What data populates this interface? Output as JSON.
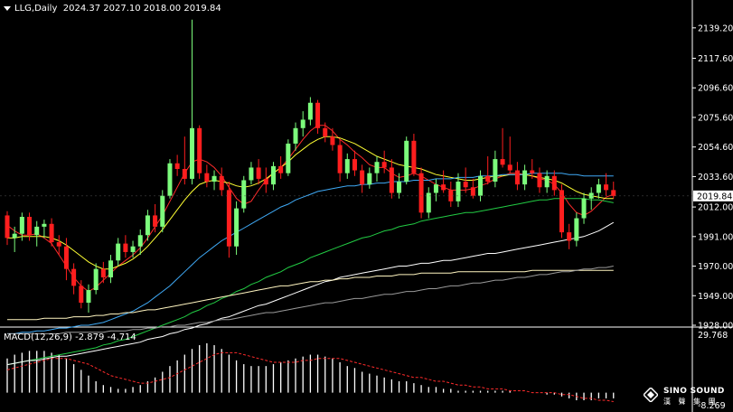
{
  "header": {
    "symbol": "LLG,Daily",
    "ohlc": "2024.37 2027.10 2018.00 2019.84"
  },
  "price_axis": {
    "ticks": [
      "2139.20",
      "2117.60",
      "2096.60",
      "2075.60",
      "2054.60",
      "2033.60",
      "2012.00",
      "1991.00",
      "1970.00",
      "1949.00",
      "1928.00"
    ],
    "current": "2019.84"
  },
  "macd": {
    "label": "MACD(12,26,9) -2.879 -4.714",
    "top": "29.768",
    "bottom": "-8.269"
  },
  "logo": {
    "brand": "SINO SOUND",
    "sub": "漢 聲 集 團"
  },
  "colors": {
    "background": "#000000",
    "bull": "#7CFC7C",
    "bear": "#FF1E1E",
    "ma_red": "#FF2B2B",
    "ma_yellow": "#FFFF33",
    "ma_blue": "#3FA9F5",
    "ma_green": "#22CC44",
    "ma_white": "#FFFFFF",
    "ma_cream": "#FFF5C0",
    "ma_gray": "#9A9A9A",
    "price_label_bg": "#FFFFFF"
  },
  "chart_data": {
    "type": "candlestick",
    "ylim": [
      1928,
      2150
    ],
    "candles": [
      [
        2006,
        2009,
        1985,
        1990
      ],
      [
        1990,
        1998,
        1980,
        1993
      ],
      [
        1993,
        2008,
        1988,
        2005
      ],
      [
        2005,
        2008,
        1988,
        1992
      ],
      [
        1992,
        2002,
        1984,
        1998
      ],
      [
        1998,
        2003,
        1990,
        2000
      ],
      [
        2000,
        2004,
        1984,
        1987
      ],
      [
        1987,
        1992,
        1978,
        1984
      ],
      [
        1984,
        1990,
        1960,
        1968
      ],
      [
        1968,
        1972,
        1950,
        1956
      ],
      [
        1956,
        1960,
        1940,
        1944
      ],
      [
        1944,
        1957,
        1937,
        1953
      ],
      [
        1953,
        1972,
        1950,
        1968
      ],
      [
        1968,
        1973,
        1958,
        1962
      ],
      [
        1962,
        1978,
        1958,
        1974
      ],
      [
        1974,
        1990,
        1970,
        1986
      ],
      [
        1986,
        1992,
        1976,
        1980
      ],
      [
        1980,
        1988,
        1976,
        1984
      ],
      [
        1984,
        1996,
        1978,
        1992
      ],
      [
        1992,
        2010,
        1988,
        2006
      ],
      [
        2006,
        2014,
        1994,
        1998
      ],
      [
        1998,
        2024,
        1994,
        2020
      ],
      [
        2020,
        2046,
        2018,
        2043
      ],
      [
        2043,
        2049,
        2034,
        2039
      ],
      [
        2039,
        2062,
        2028,
        2032
      ],
      [
        2032,
        2145,
        2028,
        2068
      ],
      [
        2068,
        2070,
        2032,
        2036
      ],
      [
        2036,
        2042,
        2026,
        2030
      ],
      [
        2030,
        2038,
        2024,
        2034
      ],
      [
        2034,
        2040,
        2020,
        2024
      ],
      [
        2024,
        2030,
        1976,
        1984
      ],
      [
        1984,
        2016,
        1978,
        2011
      ],
      [
        2011,
        2034,
        2008,
        2031
      ],
      [
        2031,
        2044,
        2028,
        2040
      ],
      [
        2040,
        2046,
        2028,
        2032
      ],
      [
        2032,
        2040,
        2022,
        2028
      ],
      [
        2028,
        2044,
        2024,
        2041
      ],
      [
        2041,
        2048,
        2032,
        2036
      ],
      [
        2036,
        2060,
        2034,
        2057
      ],
      [
        2057,
        2072,
        2052,
        2068
      ],
      [
        2068,
        2080,
        2062,
        2074
      ],
      [
        2074,
        2090,
        2070,
        2086
      ],
      [
        2086,
        2088,
        2064,
        2068
      ],
      [
        2068,
        2072,
        2058,
        2062
      ],
      [
        2062,
        2068,
        2052,
        2056
      ],
      [
        2056,
        2060,
        2030,
        2036
      ],
      [
        2036,
        2050,
        2032,
        2046
      ],
      [
        2046,
        2052,
        2034,
        2038
      ],
      [
        2038,
        2042,
        2022,
        2028
      ],
      [
        2028,
        2040,
        2025,
        2036
      ],
      [
        2036,
        2048,
        2030,
        2044
      ],
      [
        2044,
        2052,
        2036,
        2040
      ],
      [
        2040,
        2046,
        2018,
        2022
      ],
      [
        2022,
        2036,
        2018,
        2030
      ],
      [
        2030,
        2062,
        2028,
        2059
      ],
      [
        2059,
        2064,
        2034,
        2036
      ],
      [
        2036,
        2040,
        2004,
        2008
      ],
      [
        2008,
        2026,
        2004,
        2022
      ],
      [
        2022,
        2032,
        2016,
        2028
      ],
      [
        2028,
        2038,
        2022,
        2024
      ],
      [
        2024,
        2030,
        2012,
        2016
      ],
      [
        2016,
        2036,
        2012,
        2030
      ],
      [
        2030,
        2040,
        2022,
        2026
      ],
      [
        2026,
        2032,
        2018,
        2020
      ],
      [
        2020,
        2038,
        2016,
        2034
      ],
      [
        2034,
        2048,
        2028,
        2030
      ],
      [
        2030,
        2052,
        2026,
        2046
      ],
      [
        2046,
        2068,
        2040,
        2042
      ],
      [
        2042,
        2062,
        2036,
        2038
      ],
      [
        2038,
        2044,
        2024,
        2028
      ],
      [
        2028,
        2042,
        2024,
        2038
      ],
      [
        2038,
        2046,
        2032,
        2036
      ],
      [
        2036,
        2040,
        2022,
        2026
      ],
      [
        2026,
        2038,
        2022,
        2034
      ],
      [
        2034,
        2038,
        2020,
        2024
      ],
      [
        2024,
        2028,
        1990,
        1994
      ],
      [
        1994,
        2000,
        1982,
        1988
      ],
      [
        1988,
        2008,
        1984,
        2004
      ],
      [
        2004,
        2022,
        2000,
        2018
      ],
      [
        2018,
        2026,
        2010,
        2022
      ],
      [
        2022,
        2032,
        2018,
        2028
      ],
      [
        2028,
        2036,
        2020,
        2024
      ],
      [
        2024,
        2030,
        2018,
        2019.84
      ]
    ],
    "moving_averages": [
      {
        "color": "ma_red",
        "values": [
          1999,
          1995,
          1992,
          1992,
          1993,
          1990,
          1986,
          1978,
          1970,
          1962,
          1956,
          1952,
          1955,
          1960,
          1965,
          1970,
          1974,
          1978,
          1983,
          1990,
          1998,
          2006,
          2016,
          2026,
          2036,
          2044,
          2046,
          2044,
          2040,
          2034,
          2026,
          2018,
          2014,
          2016,
          2024,
          2031,
          2036,
          2040,
          2046,
          2053,
          2060,
          2066,
          2070,
          2070,
          2066,
          2060,
          2056,
          2051,
          2047,
          2042,
          2040,
          2040,
          2036,
          2033,
          2034,
          2036,
          2034,
          2031,
          2028,
          2026,
          2024,
          2024,
          2024,
          2025,
          2027,
          2029,
          2032,
          2034,
          2036,
          2036,
          2035,
          2034,
          2032,
          2031,
          2028,
          2022,
          2014,
          2008,
          2006,
          2009,
          2014,
          2019,
          2021
        ]
      },
      {
        "color": "ma_yellow",
        "values": [
          1990,
          1990,
          1991,
          1991,
          1991,
          1991,
          1990,
          1988,
          1985,
          1981,
          1977,
          1973,
          1970,
          1968,
          1968,
          1970,
          1972,
          1975,
          1979,
          1984,
          1990,
          1996,
          2003,
          2010,
          2017,
          2023,
          2028,
          2030,
          2031,
          2030,
          2029,
          2027,
          2026,
          2027,
          2029,
          2032,
          2036,
          2040,
          2044,
          2049,
          2053,
          2057,
          2060,
          2062,
          2062,
          2061,
          2059,
          2057,
          2054,
          2051,
          2048,
          2046,
          2044,
          2042,
          2041,
          2040,
          2039,
          2037,
          2035,
          2034,
          2033,
          2032,
          2031,
          2031,
          2032,
          2033,
          2034,
          2034,
          2035,
          2035,
          2035,
          2034,
          2033,
          2032,
          2031,
          2029,
          2026,
          2023,
          2021,
          2020,
          2019,
          2018,
          2018
        ]
      },
      {
        "color": "ma_blue",
        "values": [
          1922,
          1922,
          1923,
          1923,
          1924,
          1924,
          1925,
          1926,
          1926,
          1927,
          1928,
          1928,
          1929,
          1930,
          1932,
          1934,
          1936,
          1938,
          1941,
          1944,
          1948,
          1952,
          1956,
          1961,
          1966,
          1971,
          1976,
          1980,
          1984,
          1988,
          1991,
          1994,
          1997,
          2000,
          2003,
          2006,
          2009,
          2012,
          2014,
          2017,
          2019,
          2021,
          2023,
          2024,
          2025,
          2026,
          2027,
          2027,
          2028,
          2028,
          2029,
          2029,
          2030,
          2030,
          2030,
          2031,
          2031,
          2031,
          2032,
          2032,
          2032,
          2033,
          2033,
          2033,
          2034,
          2034,
          2034,
          2035,
          2035,
          2035,
          2035,
          2036,
          2036,
          2036,
          2036,
          2036,
          2035,
          2035,
          2034,
          2034,
          2034,
          2034,
          2034
        ]
      },
      {
        "color": "ma_green",
        "values": [
          1900,
          1901,
          1902,
          1903,
          1904,
          1905,
          1906,
          1907,
          1908,
          1909,
          1910,
          1911,
          1912,
          1914,
          1915,
          1917,
          1918,
          1920,
          1922,
          1924,
          1926,
          1928,
          1930,
          1932,
          1934,
          1937,
          1939,
          1942,
          1944,
          1947,
          1949,
          1952,
          1954,
          1957,
          1959,
          1962,
          1964,
          1966,
          1969,
          1971,
          1973,
          1976,
          1978,
          1980,
          1982,
          1984,
          1986,
          1988,
          1990,
          1991,
          1993,
          1995,
          1996,
          1998,
          1999,
          2000,
          2002,
          2003,
          2004,
          2005,
          2006,
          2007,
          2008,
          2008,
          2009,
          2010,
          2011,
          2012,
          2013,
          2014,
          2015,
          2016,
          2017,
          2017,
          2018,
          2018,
          2018,
          2018,
          2018,
          2017,
          2017,
          2016,
          2015
        ]
      },
      {
        "color": "ma_white",
        "values": [
          1900,
          1901,
          1902,
          1903,
          1903,
          1904,
          1905,
          1906,
          1906,
          1907,
          1908,
          1909,
          1910,
          1911,
          1912,
          1913,
          1914,
          1915,
          1916,
          1918,
          1919,
          1920,
          1922,
          1923,
          1925,
          1926,
          1928,
          1929,
          1931,
          1933,
          1934,
          1936,
          1938,
          1940,
          1942,
          1943,
          1945,
          1947,
          1949,
          1951,
          1953,
          1955,
          1957,
          1959,
          1960,
          1962,
          1963,
          1964,
          1965,
          1966,
          1967,
          1968,
          1969,
          1970,
          1970,
          1971,
          1972,
          1972,
          1973,
          1974,
          1974,
          1975,
          1976,
          1977,
          1978,
          1979,
          1979,
          1980,
          1981,
          1982,
          1983,
          1984,
          1985,
          1986,
          1987,
          1988,
          1989,
          1990,
          1991,
          1993,
          1995,
          1998,
          2001
        ]
      },
      {
        "color": "ma_cream",
        "values": [
          1932,
          1932,
          1932,
          1932,
          1932,
          1933,
          1933,
          1933,
          1933,
          1934,
          1934,
          1934,
          1935,
          1935,
          1936,
          1936,
          1937,
          1937,
          1938,
          1939,
          1939,
          1940,
          1941,
          1942,
          1943,
          1944,
          1945,
          1946,
          1947,
          1948,
          1949,
          1950,
          1951,
          1952,
          1953,
          1954,
          1955,
          1956,
          1956,
          1957,
          1958,
          1959,
          1959,
          1960,
          1960,
          1961,
          1961,
          1962,
          1962,
          1962,
          1963,
          1963,
          1963,
          1964,
          1964,
          1964,
          1965,
          1965,
          1965,
          1965,
          1965,
          1966,
          1966,
          1966,
          1966,
          1966,
          1966,
          1966,
          1966,
          1966,
          1966,
          1967,
          1967,
          1967,
          1967,
          1967,
          1967,
          1967,
          1967,
          1967,
          1967,
          1967,
          1967
        ]
      },
      {
        "color": "ma_gray",
        "values": [
          1922,
          1922,
          1922,
          1922,
          1922,
          1922,
          1922,
          1922,
          1923,
          1923,
          1923,
          1923,
          1923,
          1923,
          1924,
          1924,
          1924,
          1925,
          1925,
          1926,
          1926,
          1927,
          1927,
          1928,
          1928,
          1929,
          1930,
          1930,
          1931,
          1932,
          1932,
          1933,
          1934,
          1935,
          1936,
          1937,
          1937,
          1938,
          1939,
          1940,
          1941,
          1942,
          1943,
          1944,
          1944,
          1945,
          1946,
          1947,
          1947,
          1948,
          1949,
          1950,
          1950,
          1951,
          1952,
          1952,
          1953,
          1954,
          1954,
          1955,
          1956,
          1956,
          1957,
          1958,
          1958,
          1959,
          1960,
          1960,
          1961,
          1962,
          1962,
          1963,
          1964,
          1964,
          1965,
          1966,
          1966,
          1967,
          1968,
          1968,
          1969,
          1969,
          1970
        ]
      }
    ],
    "macd": {
      "ylim": [
        -8.269,
        29.768
      ],
      "histogram": [
        18,
        20,
        21,
        22,
        22,
        22,
        21,
        20,
        18,
        15,
        12,
        9,
        6,
        4,
        3,
        2,
        2,
        3,
        4,
        6,
        8,
        11,
        14,
        17,
        20,
        23,
        25,
        26,
        25,
        23,
        20,
        17,
        15,
        14,
        14,
        14,
        15,
        16,
        17,
        18,
        19,
        20,
        20,
        19,
        18,
        16,
        14,
        13,
        11,
        10,
        9,
        8,
        7,
        6,
        6,
        5,
        4,
        3,
        3,
        2,
        2,
        1,
        1,
        1,
        1,
        1,
        1,
        1,
        1,
        0,
        0,
        0,
        0,
        -1,
        -1,
        -2,
        -3,
        -4,
        -4,
        -4,
        -3,
        -3,
        -3
      ],
      "signal": [
        12,
        13,
        14,
        15,
        16,
        17,
        18,
        18,
        18,
        17,
        16,
        15,
        13,
        11,
        9,
        8,
        7,
        6,
        5,
        5,
        6,
        7,
        8,
        10,
        12,
        14,
        16,
        18,
        20,
        21,
        21,
        21,
        20,
        19,
        18,
        17,
        16,
        16,
        16,
        16,
        17,
        17,
        18,
        18,
        18,
        18,
        17,
        16,
        15,
        14,
        13,
        12,
        11,
        10,
        9,
        8,
        8,
        7,
        6,
        6,
        5,
        4,
        4,
        3,
        3,
        2,
        2,
        2,
        1,
        1,
        1,
        0,
        0,
        0,
        0,
        -1,
        -1,
        -2,
        -3,
        -3,
        -4,
        -4,
        -4.714
      ]
    }
  }
}
